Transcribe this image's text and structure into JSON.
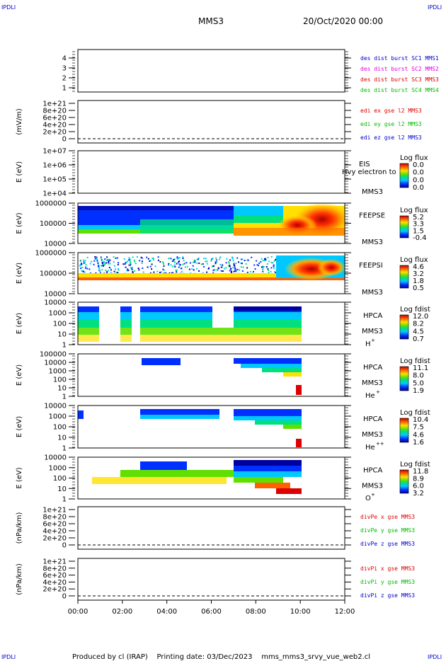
{
  "corner": {
    "tl": "IPDLI",
    "tr": "IPDLI",
    "bl": "IPDLI",
    "br": "IPDLI"
  },
  "header": {
    "spacecraft": "MMS3",
    "datetime": "20/Oct/2020 00:00"
  },
  "footer": {
    "text": "Produced by cl (IRAP)    Printing date: 03/Dec/2023    mms_mms3_srvy_vue_web2.cl"
  },
  "xaxis": {
    "ticks": [
      "00:00",
      "02:00",
      "04:00",
      "06:00",
      "08:00",
      "10:00",
      "12:00"
    ],
    "range_hours": [
      0,
      12
    ]
  },
  "colors": {
    "red": "#dd0000",
    "green": "#00bb00",
    "blue": "#0000cc",
    "magenta": "#dd00dd"
  },
  "chart_data": [
    {
      "id": "p1",
      "type": "line",
      "ylabel": "",
      "ylim": [
        0.5,
        4.5
      ],
      "yticks": [
        "1",
        "2",
        "3",
        "4"
      ],
      "legend": [
        {
          "text": "des dist burst SC1 MMS1",
          "color": "#0000cc"
        },
        {
          "text": "des dist burst SC2 MMS2",
          "color": "#dd00dd"
        },
        {
          "text": "des dist burst SC3 MMS3",
          "color": "#dd0000"
        },
        {
          "text": "des dist burst SC4 MMS4",
          "color": "#00bb00"
        }
      ],
      "series": []
    },
    {
      "id": "p2",
      "type": "line",
      "ylabel": "(mV/m)",
      "ylim": [
        0,
        1e+21
      ],
      "yticks": [
        "0",
        "2e+20",
        "4e+20",
        "6e+20",
        "8e+20",
        "1e+21"
      ],
      "legend": [
        {
          "text": "edi ex gse l2 MMS3",
          "color": "#dd0000"
        },
        {
          "text": "edi ey gse l2 MMS3",
          "color": "#00bb00"
        },
        {
          "text": "edi ez gse l2 MMS3",
          "color": "#0000cc"
        }
      ],
      "series": []
    },
    {
      "id": "p3",
      "type": "heatmap",
      "ylabel": "E (eV)",
      "scale": "log",
      "ylim": [
        10000,
        10000000
      ],
      "yticks": [
        "1e+04",
        "1e+05",
        "1e+06",
        "1e+07"
      ],
      "instrument": "EIS",
      "sc": "MMS3",
      "overlay": "Hvy electron to",
      "colorbar": {
        "title": "Log flux",
        "ticks": [
          "0.0",
          "0.0",
          "0.0",
          "0.0"
        ]
      }
    },
    {
      "id": "p4",
      "type": "heatmap",
      "ylabel": "E (eV)",
      "scale": "log",
      "ylim": [
        10000,
        1000000
      ],
      "yticks": [
        "10000",
        "100000",
        "1000000"
      ],
      "instrument": "FEEPSE",
      "sc": "MMS3",
      "colorbar": {
        "title": "Log flux",
        "ticks": [
          "5.2",
          "3.3",
          "1.5",
          "-0.4"
        ]
      }
    },
    {
      "id": "p5",
      "type": "heatmap",
      "ylabel": "E (eV)",
      "scale": "log",
      "ylim": [
        10000,
        1000000
      ],
      "yticks": [
        "10000",
        "100000",
        "1000000"
      ],
      "instrument": "FEEPSI",
      "sc": "MMS3",
      "colorbar": {
        "title": "Log flux",
        "ticks": [
          "4.6",
          "3.2",
          "1.8",
          "0.5"
        ]
      }
    },
    {
      "id": "p6",
      "type": "heatmap",
      "ylabel": "E (eV)",
      "scale": "log",
      "ylim": [
        1,
        20000
      ],
      "yticks": [
        "1",
        "10",
        "100",
        "1000",
        "10000"
      ],
      "instrument": "HPCA",
      "sc": "MMS3",
      "species": "H",
      "charge": "+",
      "colorbar": {
        "title": "Log fdist",
        "ticks": [
          "12.0",
          "8.2",
          "4.5",
          "0.7"
        ]
      }
    },
    {
      "id": "p7",
      "type": "heatmap",
      "ylabel": "E (eV)",
      "scale": "log",
      "ylim": [
        1,
        100000
      ],
      "yticks": [
        "1",
        "10",
        "100",
        "1000",
        "10000",
        "100000"
      ],
      "instrument": "HPCA",
      "sc": "MMS3",
      "species": "He",
      "charge": "+",
      "colorbar": {
        "title": "Log fdist",
        "ticks": [
          "11.1",
          "8.0",
          "5.0",
          "1.9"
        ]
      }
    },
    {
      "id": "p8",
      "type": "heatmap",
      "ylabel": "E (eV)",
      "scale": "log",
      "ylim": [
        1,
        20000
      ],
      "yticks": [
        "1",
        "10",
        "100",
        "1000",
        "10000"
      ],
      "instrument": "HPCA",
      "sc": "MMS3",
      "species": "He",
      "charge": "++",
      "colorbar": {
        "title": "Log fdist",
        "ticks": [
          "10.4",
          "7.5",
          "4.6",
          "1.6"
        ]
      }
    },
    {
      "id": "p9",
      "type": "heatmap",
      "ylabel": "E (eV)",
      "scale": "log",
      "ylim": [
        1,
        20000
      ],
      "yticks": [
        "1",
        "10",
        "100",
        "1000",
        "10000"
      ],
      "instrument": "HPCA",
      "sc": "MMS3",
      "species": "O",
      "charge": "+",
      "colorbar": {
        "title": "Log fdist",
        "ticks": [
          "11.8",
          "8.9",
          "6.0",
          "3.2"
        ]
      }
    },
    {
      "id": "p10",
      "type": "line",
      "ylabel": "(nPa/km)",
      "ylim": [
        0,
        1e+21
      ],
      "yticks": [
        "0",
        "2e+20",
        "4e+20",
        "6e+20",
        "8e+20",
        "1e+21"
      ],
      "legend": [
        {
          "text": "divPe x gse MMS3",
          "color": "#dd0000"
        },
        {
          "text": "divPe y gse MMS3",
          "color": "#00bb00"
        },
        {
          "text": "divPe z gse MMS3",
          "color": "#0000cc"
        }
      ],
      "series": []
    },
    {
      "id": "p11",
      "type": "line",
      "ylabel": "(nPa/km)",
      "ylim": [
        0,
        1e+21
      ],
      "yticks": [
        "0",
        "2e+20",
        "4e+20",
        "6e+20",
        "8e+20",
        "1e+21"
      ],
      "legend": [
        {
          "text": "divPi x gse MMS3",
          "color": "#dd0000"
        },
        {
          "text": "divPi y gse MMS3",
          "color": "#00bb00"
        },
        {
          "text": "divPi z gse MMS3",
          "color": "#0000cc"
        }
      ],
      "series": []
    }
  ]
}
